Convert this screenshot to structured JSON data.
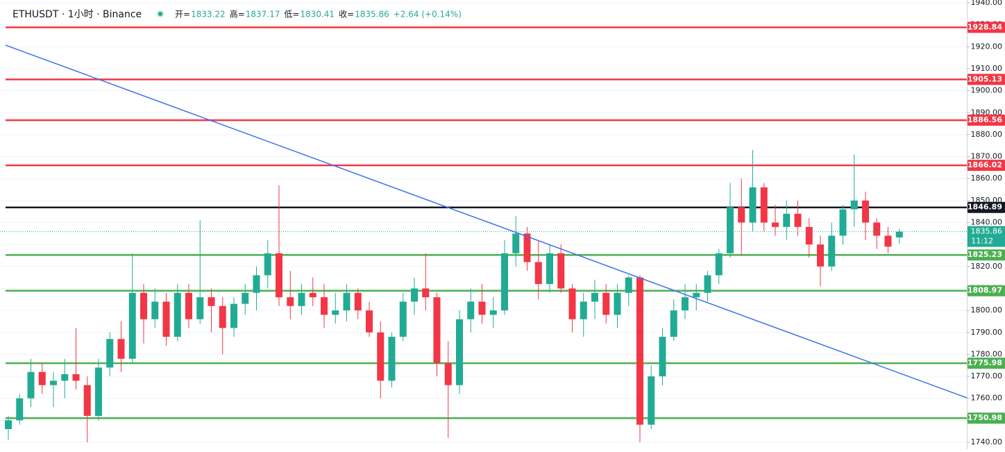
{
  "chart_data": {
    "type": "candlestick",
    "title": "ETHUSDT · 1小时 · Binance",
    "ohlc": [
      {
        "label": "开=",
        "value": "1833.22"
      },
      {
        "label": "高=",
        "value": "1837.17"
      },
      {
        "label": "低=",
        "value": "1830.41"
      },
      {
        "label": "收=",
        "value": "1835.86"
      }
    ],
    "change": "+2.64 (+0.14%)",
    "up_color": "#22ab94",
    "down_color": "#f23645",
    "ylim": [
      1740,
      1940
    ],
    "yticks": [
      {
        "value": 1740,
        "label": "1740.00"
      },
      {
        "value": 1750,
        "label": "1750.00"
      },
      {
        "value": 1760,
        "label": "1760.00"
      },
      {
        "value": 1770,
        "label": "1770.00"
      },
      {
        "value": 1780,
        "label": "1780.00"
      },
      {
        "value": 1790,
        "label": "1790.00"
      },
      {
        "value": 1800,
        "label": "1800.00"
      },
      {
        "value": 1810,
        "label": "1810.00"
      },
      {
        "value": 1820,
        "label": "1820.00"
      },
      {
        "value": 1830,
        "label": "1830.00"
      },
      {
        "value": 1840,
        "label": "1840.00"
      },
      {
        "value": 1850,
        "label": "1850.00"
      },
      {
        "value": 1860,
        "label": "1860.00"
      },
      {
        "value": 1870,
        "label": "1870.00"
      },
      {
        "value": 1880,
        "label": "1880.00"
      },
      {
        "value": 1890,
        "label": "1890.00"
      },
      {
        "value": 1900,
        "label": "1900.00"
      },
      {
        "value": 1910,
        "label": "1910.00"
      },
      {
        "value": 1920,
        "label": "1920.00"
      },
      {
        "value": 1930,
        "label": "1930.00"
      },
      {
        "value": 1940,
        "label": "1940.00"
      }
    ],
    "grid": true,
    "levels": [
      {
        "value": 1928.84,
        "color": "#f23645"
      },
      {
        "value": 1905.13,
        "color": "#f23645"
      },
      {
        "value": 1886.56,
        "color": "#f23645"
      },
      {
        "value": 1866.02,
        "color": "#f23645"
      },
      {
        "value": 1846.89,
        "color": "#131722"
      },
      {
        "value": 1825.23,
        "color": "#4caf50"
      },
      {
        "value": 1808.97,
        "color": "#4caf50"
      },
      {
        "value": 1775.98,
        "color": "#4caf50"
      },
      {
        "value": 1750.98,
        "color": "#4caf50"
      }
    ],
    "current_price": 1835.86,
    "countdown": "11:12",
    "trendline": {
      "x": [
        -0.25,
        85
      ],
      "y": [
        1920.7,
        1760.2
      ],
      "color": "#3d6ff0"
    },
    "candles": [
      [
        1746,
        1752,
        1741,
        1750
      ],
      [
        1750,
        1762,
        1748,
        1760
      ],
      [
        1760,
        1778,
        1756,
        1772
      ],
      [
        1772,
        1776,
        1762,
        1766
      ],
      [
        1766,
        1772,
        1756,
        1768
      ],
      [
        1768,
        1778,
        1760,
        1771
      ],
      [
        1771,
        1792,
        1764,
        1768
      ],
      [
        1766,
        1770,
        1740,
        1752
      ],
      [
        1752,
        1778,
        1750,
        1774
      ],
      [
        1774,
        1790,
        1770,
        1787
      ],
      [
        1787,
        1795,
        1772,
        1778
      ],
      [
        1778,
        1826,
        1776,
        1808
      ],
      [
        1808,
        1812,
        1785,
        1796
      ],
      [
        1796,
        1810,
        1792,
        1804
      ],
      [
        1804,
        1808,
        1784,
        1788
      ],
      [
        1788,
        1812,
        1786,
        1808
      ],
      [
        1808,
        1812,
        1792,
        1796
      ],
      [
        1796,
        1841,
        1794,
        1806
      ],
      [
        1806,
        1810,
        1790,
        1802
      ],
      [
        1802,
        1806,
        1780,
        1792
      ],
      [
        1792,
        1806,
        1788,
        1803
      ],
      [
        1803,
        1812,
        1798,
        1808
      ],
      [
        1808,
        1820,
        1800,
        1816
      ],
      [
        1816,
        1832,
        1810,
        1826
      ],
      [
        1826,
        1857,
        1802,
        1806
      ],
      [
        1806,
        1818,
        1796,
        1802
      ],
      [
        1802,
        1812,
        1798,
        1808
      ],
      [
        1808,
        1815,
        1802,
        1806
      ],
      [
        1806,
        1812,
        1792,
        1798
      ],
      [
        1798,
        1808,
        1794,
        1800
      ],
      [
        1800,
        1812,
        1795,
        1808
      ],
      [
        1808,
        1810,
        1796,
        1800
      ],
      [
        1800,
        1804,
        1788,
        1790
      ],
      [
        1790,
        1795,
        1760,
        1768
      ],
      [
        1768,
        1790,
        1765,
        1788
      ],
      [
        1788,
        1808,
        1786,
        1804
      ],
      [
        1804,
        1815,
        1798,
        1810
      ],
      [
        1810,
        1826,
        1800,
        1806
      ],
      [
        1806,
        1808,
        1770,
        1776
      ],
      [
        1776,
        1786,
        1742,
        1766
      ],
      [
        1766,
        1800,
        1762,
        1796
      ],
      [
        1796,
        1810,
        1790,
        1804
      ],
      [
        1804,
        1812,
        1794,
        1798
      ],
      [
        1798,
        1806,
        1792,
        1800
      ],
      [
        1800,
        1832,
        1798,
        1826
      ],
      [
        1826,
        1843,
        1820,
        1835
      ],
      [
        1835,
        1838,
        1818,
        1822
      ],
      [
        1822,
        1832,
        1805,
        1812
      ],
      [
        1812,
        1830,
        1808,
        1826
      ],
      [
        1826,
        1830,
        1808,
        1810
      ],
      [
        1810,
        1812,
        1790,
        1796
      ],
      [
        1796,
        1808,
        1788,
        1804
      ],
      [
        1804,
        1814,
        1796,
        1808
      ],
      [
        1808,
        1812,
        1794,
        1798
      ],
      [
        1798,
        1812,
        1792,
        1808
      ],
      [
        1808,
        1816,
        1802,
        1815
      ],
      [
        1815,
        1816,
        1740,
        1748
      ],
      [
        1748,
        1775,
        1746,
        1770
      ],
      [
        1770,
        1792,
        1766,
        1788
      ],
      [
        1788,
        1805,
        1786,
        1800
      ],
      [
        1800,
        1812,
        1796,
        1806
      ],
      [
        1806,
        1812,
        1800,
        1808
      ],
      [
        1808,
        1818,
        1804,
        1816
      ],
      [
        1816,
        1828,
        1812,
        1826
      ],
      [
        1826,
        1858,
        1824,
        1847
      ],
      [
        1847,
        1860,
        1825,
        1840
      ],
      [
        1840,
        1873,
        1836,
        1856
      ],
      [
        1856,
        1858,
        1836,
        1840
      ],
      [
        1840,
        1848,
        1834,
        1838
      ],
      [
        1838,
        1850,
        1832,
        1844
      ],
      [
        1844,
        1850,
        1834,
        1838
      ],
      [
        1838,
        1842,
        1824,
        1830
      ],
      [
        1830,
        1834,
        1811,
        1820
      ],
      [
        1820,
        1840,
        1818,
        1834
      ],
      [
        1834,
        1848,
        1830,
        1846
      ],
      [
        1846,
        1871,
        1838,
        1850
      ],
      [
        1850,
        1854,
        1832,
        1840
      ],
      [
        1840,
        1842,
        1828,
        1834
      ],
      [
        1834,
        1838,
        1826,
        1829
      ],
      [
        1833.22,
        1837.17,
        1830.41,
        1835.86
      ]
    ]
  }
}
